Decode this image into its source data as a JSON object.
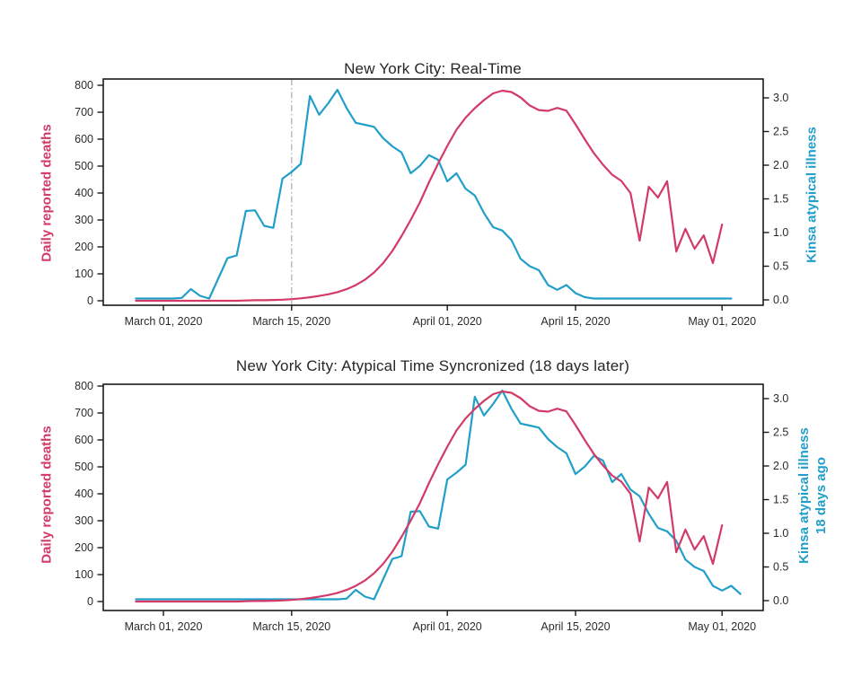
{
  "colors": {
    "deaths": "#d23b67",
    "illness": "#229fc9",
    "axis": "#1a1a1a",
    "tick_text": "#2b2b2b",
    "title_text": "#262626",
    "vline": "#b0b0b0",
    "background": "#ffffff"
  },
  "chart_data": [
    {
      "type": "line",
      "title": "New York City: Real-Time",
      "ylabel_left": "Daily reported deaths",
      "ylabel_right_line1": "Kinsa atypical illness",
      "ylabel_right_line2": "",
      "ylim_left": [
        0,
        800
      ],
      "ylim_right": [
        0.0,
        3.0
      ],
      "yticks_left": [
        0,
        100,
        200,
        300,
        400,
        500,
        600,
        700,
        800
      ],
      "yticks_right": [
        "0.0",
        "0.5",
        "1.0",
        "1.5",
        "2.0",
        "2.5",
        "3.0"
      ],
      "x_tick_labels": [
        "March 01, 2020",
        "March 15, 2020",
        "April 01, 2020",
        "April 15, 2020",
        "May 01, 2020"
      ],
      "x_tick_days": [
        0,
        14,
        31,
        45,
        61
      ],
      "vline_day": 14,
      "grid": false,
      "legend": "none",
      "series": [
        {
          "name": "Kinsa atypical illness",
          "axis": "right",
          "color_key": "illness",
          "day_start": -3,
          "values": [
            0.02,
            0.02,
            0.02,
            0.02,
            0.02,
            0.03,
            0.16,
            0.06,
            0.02,
            0.32,
            0.62,
            0.66,
            1.32,
            1.33,
            1.1,
            1.07,
            1.8,
            1.9,
            2.02,
            3.03,
            2.75,
            2.92,
            3.12,
            2.85,
            2.63,
            2.6,
            2.57,
            2.4,
            2.28,
            2.19,
            1.88,
            1.99,
            2.15,
            2.08,
            1.76,
            1.88,
            1.65,
            1.55,
            1.29,
            1.08,
            1.03,
            0.89,
            0.61,
            0.5,
            0.44,
            0.22,
            0.15,
            0.22,
            0.1,
            0.04,
            0.02,
            0.02,
            0.02,
            0.02,
            0.02,
            0.02,
            0.02,
            0.02,
            0.02,
            0.02,
            0.02,
            0.02,
            0.02,
            0.02,
            0.02,
            0.02
          ]
        },
        {
          "name": "Daily reported deaths",
          "axis": "left",
          "color_key": "deaths",
          "day_start": -3,
          "values": [
            0,
            0,
            0,
            0,
            0,
            0,
            0,
            0,
            0,
            0,
            0,
            0,
            1,
            2,
            2,
            3,
            4,
            6,
            9,
            13,
            18,
            24,
            32,
            43,
            58,
            78,
            105,
            140,
            185,
            240,
            300,
            365,
            440,
            510,
            575,
            635,
            680,
            715,
            745,
            770,
            780,
            775,
            755,
            725,
            708,
            705,
            716,
            706,
            655,
            600,
            548,
            505,
            468,
            445,
            400,
            223,
            423,
            383,
            444,
            183,
            267,
            193,
            243,
            140,
            283
          ]
        }
      ]
    },
    {
      "type": "line",
      "title": "New York City: Atypical Time Syncronized (18 days later)",
      "ylabel_left": "Daily reported deaths",
      "ylabel_right_line1": "Kinsa atypical illness",
      "ylabel_right_line2": "18 days ago",
      "ylim_left": [
        0,
        800
      ],
      "ylim_right": [
        0.0,
        3.0
      ],
      "yticks_left": [
        0,
        100,
        200,
        300,
        400,
        500,
        600,
        700,
        800
      ],
      "yticks_right": [
        "0.0",
        "0.5",
        "1.0",
        "1.5",
        "2.0",
        "2.5",
        "3.0"
      ],
      "x_tick_labels": [
        "March 01, 2020",
        "March 15, 2020",
        "April 01, 2020",
        "April 15, 2020",
        "May 01, 2020"
      ],
      "x_tick_days": [
        0,
        14,
        31,
        45,
        61
      ],
      "vline_day": null,
      "grid": false,
      "legend": "none",
      "kinsa_shift_days": 18,
      "series": [
        {
          "name": "Kinsa atypical illness 18 days ago",
          "axis": "right",
          "color_key": "illness",
          "day_start": -3,
          "values": [
            0.02,
            0.02,
            0.02,
            0.02,
            0.02,
            0.02,
            0.02,
            0.02,
            0.02,
            0.02,
            0.02,
            0.02,
            0.02,
            0.02,
            0.02,
            0.02,
            0.02,
            0.02,
            0.02,
            0.02,
            0.02,
            0.02,
            0.02,
            0.03,
            0.16,
            0.06,
            0.02,
            0.32,
            0.62,
            0.66,
            1.32,
            1.33,
            1.1,
            1.07,
            1.8,
            1.9,
            2.02,
            3.03,
            2.75,
            2.92,
            3.12,
            2.85,
            2.63,
            2.6,
            2.57,
            2.4,
            2.28,
            2.19,
            1.88,
            1.99,
            2.15,
            2.08,
            1.76,
            1.88,
            1.65,
            1.55,
            1.29,
            1.08,
            1.03,
            0.89,
            0.61,
            0.5,
            0.44,
            0.22,
            0.15,
            0.22,
            0.1
          ]
        },
        {
          "name": "Daily reported deaths",
          "axis": "left",
          "color_key": "deaths",
          "day_start": -3,
          "values": [
            0,
            0,
            0,
            0,
            0,
            0,
            0,
            0,
            0,
            0,
            0,
            0,
            1,
            2,
            2,
            3,
            4,
            6,
            9,
            13,
            18,
            24,
            32,
            43,
            58,
            78,
            105,
            140,
            185,
            240,
            300,
            365,
            440,
            510,
            575,
            635,
            680,
            715,
            745,
            770,
            780,
            775,
            755,
            725,
            708,
            705,
            716,
            706,
            655,
            600,
            548,
            505,
            468,
            445,
            400,
            223,
            423,
            383,
            444,
            183,
            267,
            193,
            243,
            140,
            283
          ]
        }
      ]
    }
  ]
}
